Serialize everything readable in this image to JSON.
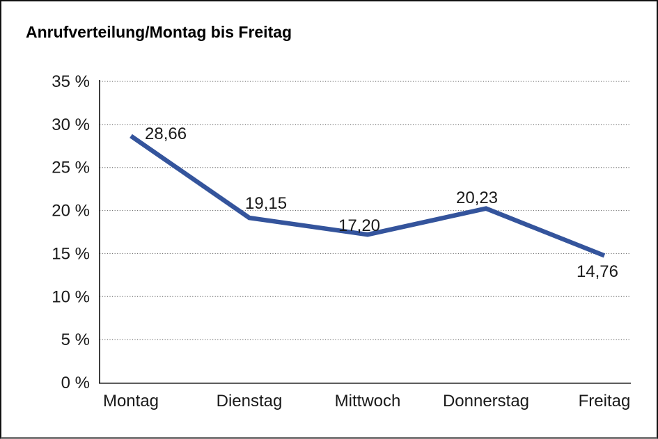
{
  "title": "Anrufverteilung/Montag bis Freitag",
  "chart_data": {
    "type": "line",
    "title": "Anrufverteilung/Montag bis Freitag",
    "categories": [
      "Montag",
      "Dienstag",
      "Mittwoch",
      "Donnerstag",
      "Freitag"
    ],
    "values": [
      28.66,
      19.15,
      17.2,
      20.23,
      14.76
    ],
    "value_labels": [
      "28,66",
      "19,15",
      "17,20",
      "20,23",
      "14,76"
    ],
    "series_name": "Anrufverteilung",
    "xlabel": "",
    "ylabel": "",
    "ylim": [
      0,
      35
    ],
    "y_tick_step": 5,
    "y_ticks": [
      0,
      5,
      10,
      15,
      20,
      25,
      30,
      35
    ],
    "y_tick_labels": [
      "0 %",
      "5 %",
      "10 %",
      "15 %",
      "20 %",
      "25 %",
      "30 %",
      "35 %"
    ],
    "grid": "horizontal-dotted",
    "legend": "none",
    "markers": "none",
    "line_color": "#34549C",
    "grid_color": "#757575",
    "axis_color": "#000000",
    "text_color": "#1a1a1a",
    "background_color": "#ffffff"
  }
}
